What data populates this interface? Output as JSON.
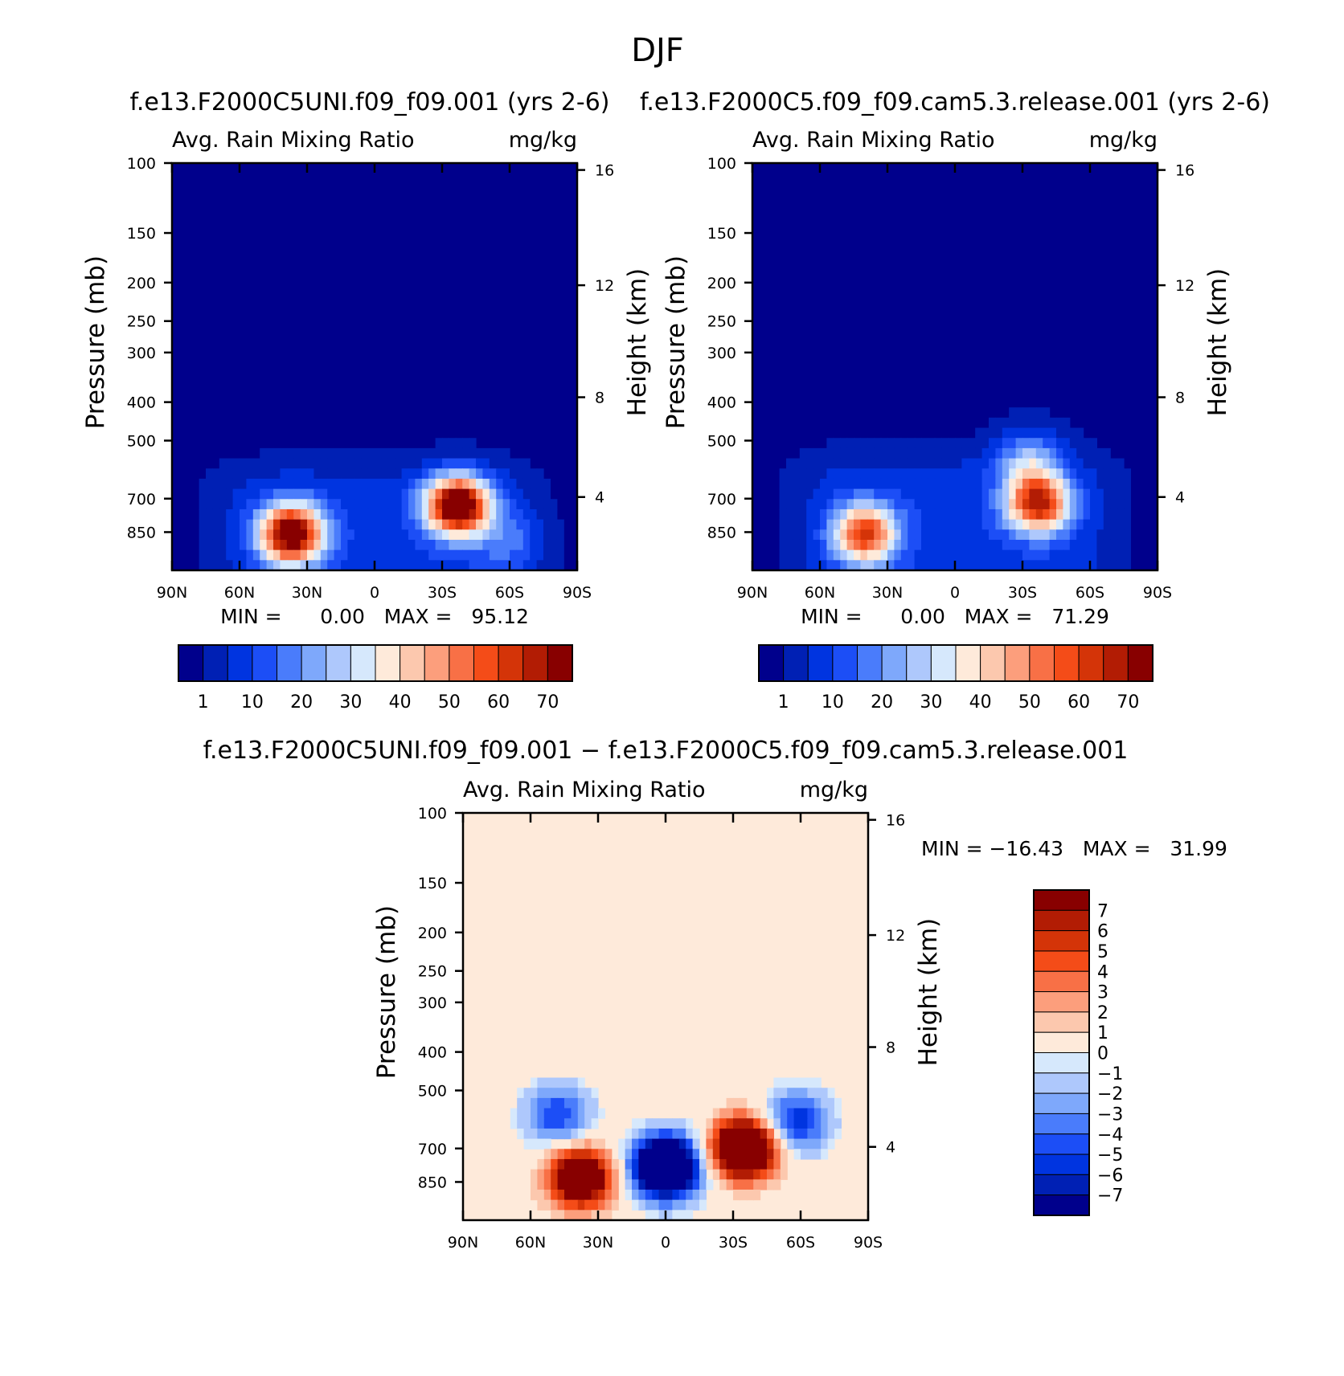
{
  "figure": {
    "title": "DJF"
  },
  "chart_data": [
    {
      "type": "heatmap",
      "name": "control",
      "title": "f.e13.F2000C5UNI.f09_f09.001 (yrs 2-6)",
      "left_string": "Avg. Rain Mixing Ratio",
      "right_string": "mg/kg",
      "xlabel": "",
      "ylabel": "Pressure (mb)",
      "y2label": "Height (km)",
      "x_ticks": [
        "90N",
        "60N",
        "30N",
        "0",
        "30S",
        "60S",
        "90S"
      ],
      "y_ticks": [
        100,
        150,
        200,
        250,
        300,
        400,
        500,
        700,
        850
      ],
      "y2_ticks": [
        16,
        12,
        8,
        4
      ],
      "ylim": [
        1000,
        100
      ],
      "xlim": [
        90,
        -90
      ],
      "stats": "MIN =      0.00   MAX =   95.12",
      "min": 0.0,
      "max": 95.12,
      "features": [
        {
          "lat": 37,
          "p": 860,
          "value": 75
        },
        {
          "lat": -37,
          "p": 730,
          "value": 80
        },
        {
          "lat": -60,
          "p": 900,
          "value": 12
        }
      ],
      "colorbar": {
        "orientation": "horizontal",
        "levels": [
          "1",
          "10",
          "20",
          "30",
          "40",
          "50",
          "60",
          "70"
        ],
        "level_values": [
          1,
          5,
          10,
          15,
          20,
          25,
          30,
          35,
          40,
          45,
          50,
          55,
          60,
          65,
          70
        ],
        "colors": [
          "#00008c",
          "#0020b4",
          "#0034e0",
          "#1c4ef6",
          "#4a7cfb",
          "#7ea8fb",
          "#aec8fc",
          "#d6e8fc",
          "#feeada",
          "#fcc8ae",
          "#fc9e7c",
          "#f87046",
          "#f44c18",
          "#d43408",
          "#b21c04",
          "#880000"
        ]
      }
    },
    {
      "type": "heatmap",
      "name": "test",
      "title": "f.e13.F2000C5.f09_f09.cam5.3.release.001 (yrs 2-6)",
      "left_string": "Avg. Rain Mixing Ratio",
      "right_string": "mg/kg",
      "xlabel": "",
      "ylabel": "Pressure (mb)",
      "y2label": "Height (km)",
      "x_ticks": [
        "90N",
        "60N",
        "30N",
        "0",
        "30S",
        "60S",
        "90S"
      ],
      "y_ticks": [
        100,
        150,
        200,
        250,
        300,
        400,
        500,
        700,
        850
      ],
      "y2_ticks": [
        16,
        12,
        8,
        4
      ],
      "ylim": [
        1000,
        100
      ],
      "xlim": [
        90,
        -90
      ],
      "stats": "MIN =      0.00   MAX =   71.29",
      "min": 0.0,
      "max": 71.29,
      "features": [
        {
          "lat": 40,
          "p": 860,
          "value": 55
        },
        {
          "lat": -37,
          "p": 720,
          "value": 60
        },
        {
          "lat": -33,
          "p": 560,
          "value": 22
        }
      ],
      "colorbar": {
        "orientation": "horizontal",
        "levels": [
          "1",
          "10",
          "20",
          "30",
          "40",
          "50",
          "60",
          "70"
        ],
        "level_values": [
          1,
          5,
          10,
          15,
          20,
          25,
          30,
          35,
          40,
          45,
          50,
          55,
          60,
          65,
          70
        ],
        "colors": [
          "#00008c",
          "#0020b4",
          "#0034e0",
          "#1c4ef6",
          "#4a7cfb",
          "#7ea8fb",
          "#aec8fc",
          "#d6e8fc",
          "#feeada",
          "#fcc8ae",
          "#fc9e7c",
          "#f87046",
          "#f44c18",
          "#d43408",
          "#b21c04",
          "#880000"
        ]
      }
    },
    {
      "type": "heatmap",
      "name": "difference",
      "title": "f.e13.F2000C5UNI.f09_f09.001 − f.e13.F2000C5.f09_f09.cam5.3.release.001",
      "left_string": "Avg. Rain Mixing Ratio",
      "right_string": "mg/kg",
      "xlabel": "",
      "ylabel": "Pressure (mb)",
      "y2label": "Height (km)",
      "x_ticks": [
        "90N",
        "60N",
        "30N",
        "0",
        "30S",
        "60S",
        "90S"
      ],
      "y_ticks": [
        100,
        150,
        200,
        250,
        300,
        400,
        500,
        700,
        850
      ],
      "y2_ticks": [
        16,
        12,
        8,
        4
      ],
      "ylim": [
        1000,
        100
      ],
      "xlim": [
        90,
        -90
      ],
      "stats": "MIN = −16.43   MAX =   31.99",
      "min": -16.43,
      "max": 31.99,
      "features": [
        {
          "lat": 38,
          "p": 830,
          "value": 12
        },
        {
          "lat": -35,
          "p": 700,
          "value": 15
        },
        {
          "lat": 0,
          "p": 780,
          "value": -16
        },
        {
          "lat": 48,
          "p": 580,
          "value": -5
        },
        {
          "lat": -58,
          "p": 600,
          "value": -6
        }
      ],
      "colorbar": {
        "orientation": "vertical",
        "levels": [
          "7",
          "6",
          "5",
          "4",
          "3",
          "2",
          "1",
          "0",
          "−1",
          "−2",
          "−3",
          "−4",
          "−5",
          "−6",
          "−7"
        ],
        "level_values": [
          7,
          6,
          5,
          4,
          3,
          2,
          1,
          0,
          -1,
          -2,
          -3,
          -4,
          -5,
          -6,
          -7
        ],
        "colors": [
          "#880000",
          "#b21c04",
          "#d43408",
          "#f44c18",
          "#f87046",
          "#fc9e7c",
          "#fcc8ae",
          "#feeada",
          "#d6e8fc",
          "#aec8fc",
          "#7ea8fb",
          "#4a7cfb",
          "#1c4ef6",
          "#0034e0",
          "#0020b4",
          "#00008c"
        ]
      }
    }
  ]
}
